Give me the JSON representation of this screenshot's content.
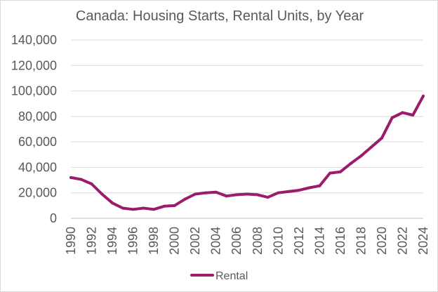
{
  "chart_data": {
    "type": "line",
    "title": "Canada: Housing Starts, Rental Units, by Year",
    "xlabel": "",
    "ylabel": "",
    "x": [
      1990,
      1991,
      1992,
      1993,
      1994,
      1995,
      1996,
      1997,
      1998,
      1999,
      2000,
      2001,
      2002,
      2003,
      2004,
      2005,
      2006,
      2007,
      2008,
      2009,
      2010,
      2011,
      2012,
      2013,
      2014,
      2015,
      2016,
      2017,
      2018,
      2019,
      2020,
      2021,
      2022,
      2023,
      2024
    ],
    "x_tick_labels": [
      "1990",
      "1992",
      "1994",
      "1996",
      "1998",
      "2000",
      "2002",
      "2004",
      "2006",
      "2008",
      "2010",
      "2012",
      "2014",
      "2016",
      "2018",
      "2020",
      "2022",
      "2024"
    ],
    "y_tick_labels": [
      "0",
      "20,000",
      "40,000",
      "60,000",
      "80,000",
      "100,000",
      "120,000",
      "140,000"
    ],
    "ylim": [
      0,
      140000
    ],
    "grid": true,
    "legend_position": "bottom",
    "series": [
      {
        "name": "Rental",
        "color": "#9b1b6d",
        "values": [
          32000,
          30500,
          27000,
          19000,
          12000,
          8000,
          7000,
          8000,
          7000,
          9500,
          10000,
          15000,
          19000,
          20000,
          20500,
          17500,
          18500,
          19000,
          18500,
          16500,
          20000,
          21000,
          22000,
          24000,
          25500,
          35500,
          36500,
          43000,
          49000,
          56000,
          63000,
          79000,
          83000,
          81000,
          96000
        ]
      }
    ]
  }
}
